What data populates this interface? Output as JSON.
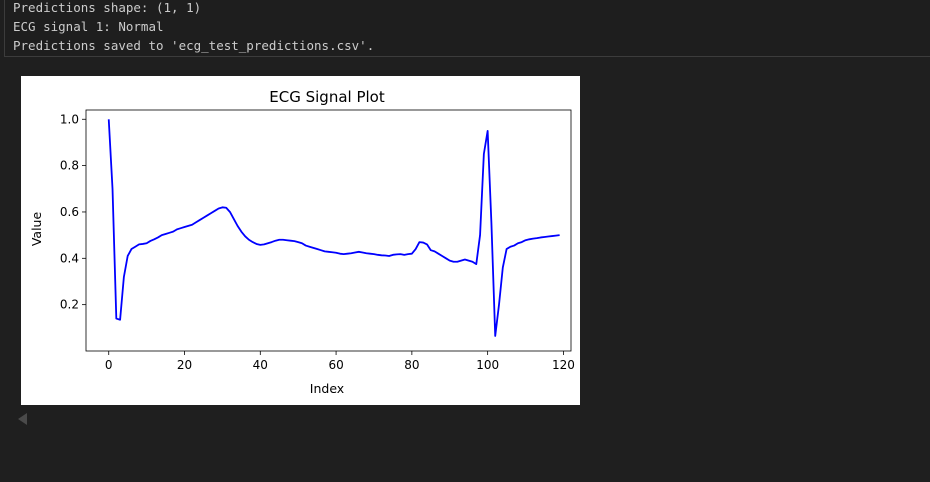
{
  "output": {
    "lines": [
      "Predictions shape: (1, 1)",
      "ECG signal 1: Normal",
      "Predictions saved to 'ecg_test_predictions.csv'."
    ]
  },
  "chart_data": {
    "type": "line",
    "title": "ECG Signal Plot",
    "xlabel": "Index",
    "ylabel": "Value",
    "xlim": [
      -6,
      122
    ],
    "ylim": [
      0.0,
      1.04
    ],
    "xticks": [
      0,
      20,
      40,
      60,
      80,
      100,
      120
    ],
    "yticks": [
      0.2,
      0.4,
      0.6,
      0.8,
      1.0
    ],
    "ytick_labels": [
      "0.2",
      "0.4",
      "0.6",
      "0.8",
      "1.0"
    ],
    "grid": false,
    "series": [
      {
        "color": "#0000ff",
        "x": [
          0,
          1,
          2,
          3,
          4,
          5,
          6,
          7,
          8,
          9,
          10,
          11,
          12,
          13,
          14,
          15,
          16,
          17,
          18,
          19,
          20,
          21,
          22,
          23,
          24,
          25,
          26,
          27,
          28,
          29,
          30,
          31,
          32,
          33,
          34,
          35,
          36,
          37,
          38,
          39,
          40,
          41,
          42,
          43,
          44,
          45,
          46,
          47,
          48,
          49,
          50,
          51,
          52,
          53,
          54,
          55,
          56,
          57,
          58,
          59,
          60,
          61,
          62,
          63,
          64,
          65,
          66,
          67,
          68,
          69,
          70,
          71,
          72,
          73,
          74,
          75,
          76,
          77,
          78,
          79,
          80,
          81,
          82,
          83,
          84,
          85,
          86,
          87,
          88,
          89,
          90,
          91,
          92,
          93,
          94,
          95,
          96,
          97,
          98,
          99,
          100,
          101,
          102,
          103,
          104,
          105,
          106,
          107,
          108,
          109,
          110,
          111,
          112,
          113,
          114,
          115,
          116,
          117,
          118,
          119
        ],
        "values": [
          1.0,
          0.7,
          0.14,
          0.135,
          0.32,
          0.41,
          0.44,
          0.45,
          0.46,
          0.462,
          0.465,
          0.475,
          0.482,
          0.49,
          0.5,
          0.505,
          0.51,
          0.515,
          0.525,
          0.53,
          0.535,
          0.54,
          0.545,
          0.555,
          0.565,
          0.575,
          0.585,
          0.595,
          0.605,
          0.615,
          0.62,
          0.618,
          0.6,
          0.57,
          0.54,
          0.515,
          0.495,
          0.48,
          0.47,
          0.462,
          0.458,
          0.46,
          0.465,
          0.47,
          0.476,
          0.48,
          0.48,
          0.478,
          0.476,
          0.474,
          0.47,
          0.465,
          0.455,
          0.45,
          0.445,
          0.44,
          0.435,
          0.43,
          0.428,
          0.426,
          0.424,
          0.42,
          0.418,
          0.42,
          0.422,
          0.425,
          0.428,
          0.425,
          0.422,
          0.42,
          0.418,
          0.415,
          0.413,
          0.412,
          0.41,
          0.415,
          0.417,
          0.418,
          0.415,
          0.418,
          0.42,
          0.44,
          0.47,
          0.468,
          0.46,
          0.435,
          0.43,
          0.42,
          0.41,
          0.4,
          0.39,
          0.385,
          0.385,
          0.39,
          0.395,
          0.39,
          0.385,
          0.375,
          0.5,
          0.85,
          0.95,
          0.55,
          0.065,
          0.2,
          0.36,
          0.44,
          0.45,
          0.455,
          0.465,
          0.47,
          0.478,
          0.482,
          0.485,
          0.487,
          0.49,
          0.492,
          0.494,
          0.496,
          0.498,
          0.5
        ]
      }
    ]
  }
}
